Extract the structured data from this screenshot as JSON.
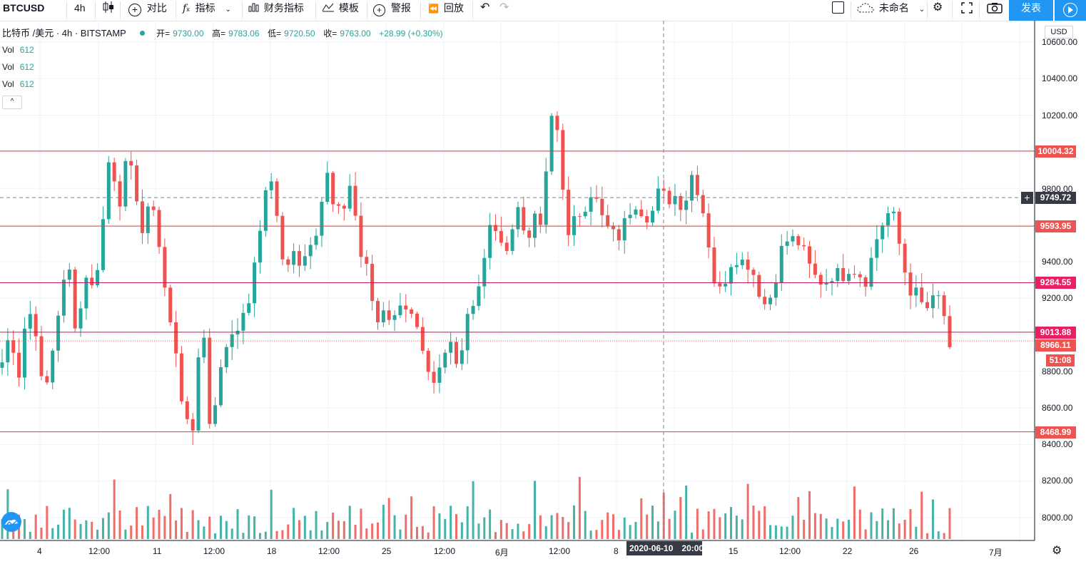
{
  "toolbar": {
    "symbol": "BTCUSD",
    "interval": "4h",
    "compare": "对比",
    "indicators": "指标",
    "financials": "财务指标",
    "templates": "模板",
    "alert": "警报",
    "replay": "回放",
    "layout_name": "未命名",
    "publish": "发表"
  },
  "legend": {
    "title": "比特币 /美元 · 4h · BITSTAMP",
    "open_label": "开=",
    "open": "9730.00",
    "high_label": "高=",
    "high": "9783.06",
    "low_label": "低=",
    "low": "9720.50",
    "close_label": "收=",
    "close": "9763.00",
    "change": "+28.99 (+0.30%)"
  },
  "volume_rows": [
    {
      "label": "Vol",
      "value": "612"
    },
    {
      "label": "Vol",
      "value": "612"
    },
    {
      "label": "Vol",
      "value": "612"
    }
  ],
  "collapse_glyph": "^",
  "currency": "USD",
  "y_axis_ticks": [
    "10600.00",
    "10400.00",
    "10200.00",
    "9800.00",
    "9400.00",
    "9200.00",
    "8800.00",
    "8600.00",
    "8400.00",
    "8200.00",
    "8000.00"
  ],
  "price_labels": [
    {
      "value": "10004.32",
      "color": "#ef5350"
    },
    {
      "value": "9749.72",
      "color": "#363a45"
    },
    {
      "value": "9593.95",
      "color": "#ef5350"
    },
    {
      "value": "9284.55",
      "color": "#e91e63"
    },
    {
      "value": "9013.88",
      "color": "#e91e63"
    },
    {
      "value": "8966.11",
      "color": "#ef5350"
    },
    {
      "value": "51:08",
      "color": "#ef5350"
    },
    {
      "value": "8468.99",
      "color": "#ef5350"
    }
  ],
  "x_axis": [
    "4",
    "12:00",
    "11",
    "12:00",
    "18",
    "12:00",
    "25",
    "12:00",
    "6月",
    "12:00",
    "8",
    "15",
    "12:00",
    "22",
    "26",
    "7月"
  ],
  "crosshair": {
    "date": "2020-06-10",
    "time": "20:00"
  },
  "colors": {
    "up": "#26a69a",
    "down": "#ef5350",
    "accent": "#2196f3"
  },
  "chart_data": {
    "type": "candlestick",
    "title": "比特币 /美元 · 4h · BITSTAMP",
    "y_range": [
      7880,
      10700
    ],
    "horizontal_lines": [
      10004.32,
      9593.95,
      9284.55,
      9013.88,
      8468.99
    ],
    "last_price": 8966.11,
    "crosshair_price": 9749.72,
    "path": [
      8850,
      9020,
      8780,
      9150,
      9050,
      8620,
      8900,
      9200,
      9380,
      8980,
      9350,
      9230,
      9560,
      10030,
      9700,
      9950,
      9820,
      9520,
      9780,
      9450,
      9100,
      8900,
      8500,
      8480,
      9170,
      8500,
      8730,
      8950,
      9050,
      9080,
      9250,
      9560,
      9920,
      9680,
      9280,
      9500,
      9370,
      9520,
      9600,
      9900,
      9650,
      9680,
      9850,
      9450,
      9340,
      9050,
      9170,
      9050,
      9210,
      9120,
      9000,
      8780,
      8700,
      8860,
      8960,
      8840,
      9130,
      9210,
      9400,
      9660,
      9460,
      9520,
      9700,
      9530,
      9620,
      9600,
      10200,
      10100,
      9500,
      9640,
      9700,
      9800,
      9650,
      9570,
      9520,
      9620,
      9740,
      9680,
      9640,
      9780,
      9740,
      9760,
      9700,
      9880,
      9760,
      9500,
      9200,
      9310,
      9440,
      9400,
      9390,
      9250,
      9140,
      9310,
      9510,
      9520,
      9500,
      9380,
      9300,
      9290,
      9340,
      9320,
      9380,
      9340,
      9300,
      9500,
      9620,
      9690,
      9480,
      9260,
      9220,
      9130,
      9180,
      9210,
      8890
    ]
  }
}
